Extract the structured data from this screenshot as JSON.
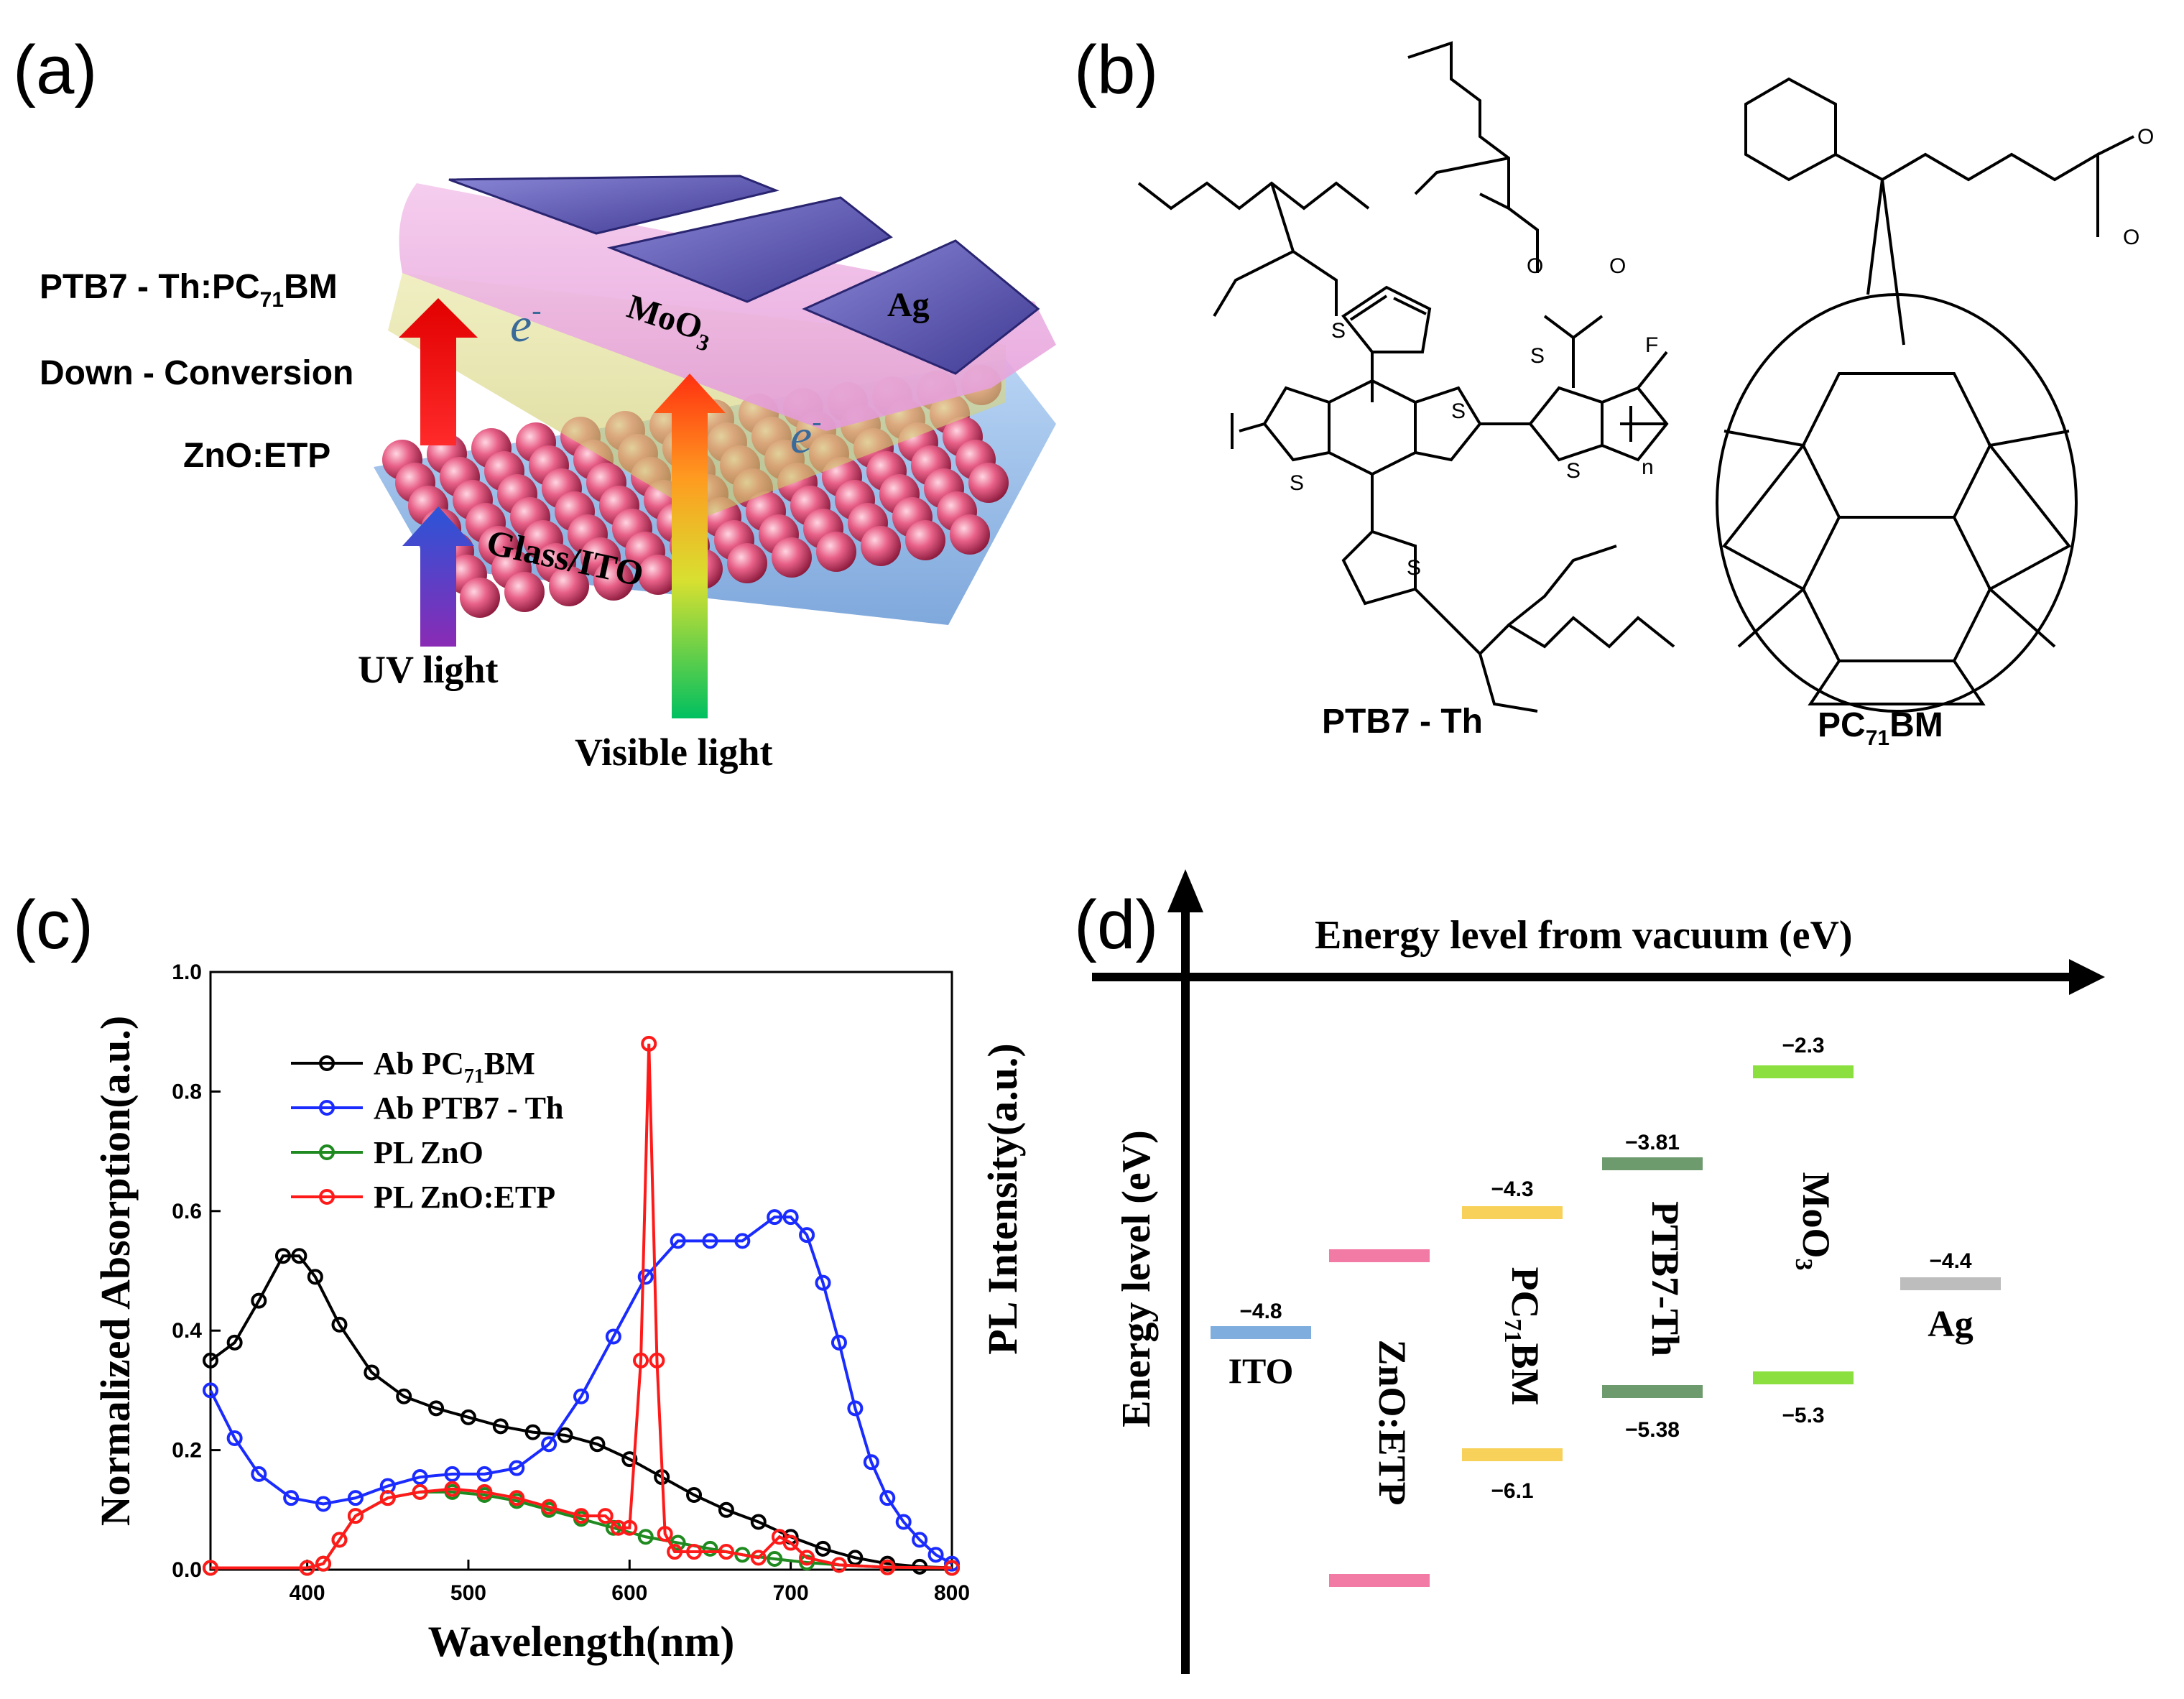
{
  "panels": {
    "a": {
      "letter": "(a)",
      "labels": {
        "active_layer": "PTB7 - Th:PC71BM",
        "down_conversion": "Down - Conversion",
        "zno_etp": "ZnO:ETP",
        "moo3": "MoO3",
        "ag": "Ag",
        "glass_ito": "Glass/ITO",
        "uv_light": "UV light",
        "visible_light": "Visible light",
        "electron": "e"
      }
    },
    "b": {
      "letter": "(b)",
      "labels": {
        "ptb7": "PTB7 - Th",
        "pcbm": "PC71BM",
        "sulfur": "S",
        "fluorine": "F",
        "oxygen": "O",
        "repeat": "n"
      }
    },
    "c": {
      "letter": "(c)"
    },
    "d": {
      "letter": "(d)",
      "x_title": "Energy level from vacuum (eV)",
      "y_title": "Energy level (eV)",
      "materials": [
        {
          "name": "ITO",
          "levels": [
            "−4.8"
          ],
          "color": "#7FAEDE"
        },
        {
          "name": "ZnO:ETP",
          "levels": [],
          "color": "#F27BA6"
        },
        {
          "name": "PC71BM",
          "levels": [
            "−4.3",
            "−6.1"
          ],
          "color": "#F7D15A"
        },
        {
          "name": "PTB7-Th",
          "levels": [
            "−3.81",
            "−5.38"
          ],
          "color": "#6E9B6E"
        },
        {
          "name": "MoO3",
          "levels": [
            "−2.3",
            "−5.3"
          ],
          "color": "#8BE040"
        },
        {
          "name": "Ag",
          "levels": [
            "−4.4"
          ],
          "color": "#BDBDBD"
        }
      ]
    }
  },
  "chart_data": {
    "type": "line",
    "xlabel": "Wavelength(nm)",
    "ylabel": "Normalized Absorption(a.u.)",
    "y2label": "PL Intensity(a.u.)",
    "xlim": [
      340,
      800
    ],
    "ylim": [
      0,
      1.0
    ],
    "xticks": [
      "400",
      "500",
      "600",
      "700",
      "800"
    ],
    "yticks": [
      "0.0",
      "0.2",
      "0.4",
      "0.6",
      "0.8",
      "1.0"
    ],
    "legend_position": "upper-left",
    "series": [
      {
        "name": "Ab PC71BM",
        "color": "#000000",
        "x": [
          340,
          355,
          370,
          385,
          395,
          405,
          420,
          440,
          460,
          480,
          500,
          520,
          540,
          560,
          580,
          600,
          620,
          640,
          660,
          680,
          700,
          720,
          740,
          760,
          780,
          800
        ],
        "y": [
          0.35,
          0.38,
          0.45,
          0.525,
          0.525,
          0.49,
          0.41,
          0.33,
          0.29,
          0.27,
          0.255,
          0.24,
          0.23,
          0.225,
          0.21,
          0.185,
          0.155,
          0.125,
          0.1,
          0.08,
          0.055,
          0.035,
          0.02,
          0.01,
          0.005,
          0.003
        ]
      },
      {
        "name": "Ab PTB7 - Th",
        "color": "#1A2BFF",
        "x": [
          340,
          355,
          370,
          390,
          410,
          430,
          450,
          470,
          490,
          510,
          530,
          550,
          570,
          590,
          610,
          630,
          650,
          670,
          690,
          700,
          710,
          720,
          730,
          740,
          750,
          760,
          770,
          780,
          790,
          800
        ],
        "y": [
          0.3,
          0.22,
          0.16,
          0.12,
          0.11,
          0.12,
          0.14,
          0.155,
          0.16,
          0.16,
          0.17,
          0.21,
          0.29,
          0.39,
          0.49,
          0.55,
          0.55,
          0.55,
          0.59,
          0.59,
          0.56,
          0.48,
          0.38,
          0.27,
          0.18,
          0.12,
          0.08,
          0.05,
          0.025,
          0.01
        ]
      },
      {
        "name": "PL ZnO",
        "color": "#1F8A1F",
        "x": [
          340,
          400,
          410,
          420,
          430,
          450,
          470,
          490,
          510,
          530,
          550,
          570,
          590,
          610,
          630,
          650,
          670,
          690,
          710,
          730,
          760,
          800
        ],
        "y": [
          0.003,
          0.003,
          0.01,
          0.05,
          0.09,
          0.12,
          0.13,
          0.13,
          0.125,
          0.115,
          0.1,
          0.085,
          0.07,
          0.055,
          0.045,
          0.035,
          0.025,
          0.018,
          0.012,
          0.008,
          0.004,
          0.003
        ]
      },
      {
        "name": "PL ZnO:ETP",
        "color": "#FF1A1A",
        "x": [
          340,
          400,
          410,
          420,
          430,
          450,
          470,
          490,
          510,
          530,
          550,
          570,
          585,
          593,
          600,
          607,
          612,
          617,
          622,
          628,
          640,
          660,
          680,
          693,
          700,
          710,
          730,
          760,
          800
        ],
        "y": [
          0.003,
          0.003,
          0.01,
          0.05,
          0.09,
          0.12,
          0.13,
          0.135,
          0.13,
          0.12,
          0.105,
          0.09,
          0.09,
          0.07,
          0.07,
          0.35,
          0.88,
          0.35,
          0.06,
          0.03,
          0.03,
          0.03,
          0.02,
          0.055,
          0.045,
          0.02,
          0.008,
          0.004,
          0.003
        ]
      }
    ]
  }
}
